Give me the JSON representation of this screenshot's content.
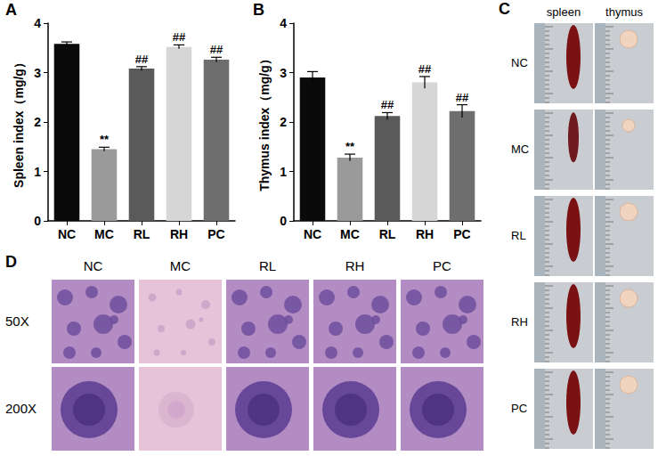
{
  "chart_data": [
    {
      "panel": "A",
      "type": "bar",
      "y_label": "Spleen index（mg/g）",
      "categories": [
        "NC",
        "MC",
        "RL",
        "RH",
        "PC"
      ],
      "values": [
        3.58,
        1.45,
        3.08,
        3.52,
        3.26
      ],
      "errors": [
        0.04,
        0.04,
        0.04,
        0.04,
        0.05
      ],
      "annotations": [
        null,
        "**",
        "##",
        "##",
        "##"
      ],
      "colors": [
        "#0a0a0a",
        "#9a9a9a",
        "#5a5a5a",
        "#d6d6d6",
        "#6e6e6e"
      ],
      "ylim": [
        0,
        4
      ],
      "yticks": [
        0,
        1,
        2,
        3,
        4
      ],
      "grid": false
    },
    {
      "panel": "B",
      "type": "bar",
      "y_label": "Thymus index（mg/g）",
      "categories": [
        "NC",
        "MC",
        "RL",
        "RH",
        "PC"
      ],
      "values": [
        2.9,
        1.28,
        2.12,
        2.8,
        2.22
      ],
      "errors": [
        0.12,
        0.07,
        0.07,
        0.12,
        0.13
      ],
      "annotations": [
        null,
        "**",
        "##",
        "##",
        "##"
      ],
      "colors": [
        "#0a0a0a",
        "#9a9a9a",
        "#5a5a5a",
        "#d6d6d6",
        "#6e6e6e"
      ],
      "ylim": [
        0,
        4
      ],
      "yticks": [
        0,
        1,
        2,
        3,
        4
      ],
      "grid": false
    }
  ],
  "photos": {
    "panel": "C",
    "columns": [
      "spleen",
      "thymus"
    ],
    "rows": [
      "NC",
      "MC",
      "RL",
      "RH",
      "PC"
    ]
  },
  "histology": {
    "panel": "D",
    "columns": [
      "NC",
      "MC",
      "RL",
      "RH",
      "PC"
    ],
    "rows": [
      "50X",
      "200X"
    ]
  }
}
